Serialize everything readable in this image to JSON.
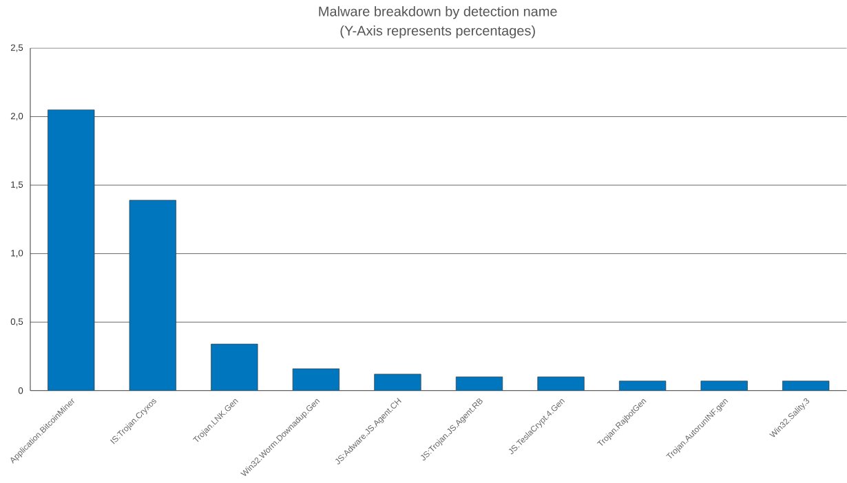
{
  "chart_data": {
    "type": "bar",
    "title": "Malware breakdown by detection name",
    "subtitle": "(Y-Axis represents percentages)",
    "categories": [
      "Application.BitcoinMiner",
      "IS:Trojan.Cryxos",
      "Trojan.LNK.Gen",
      "Win32.Worm.Downadup.Gen",
      "JS:Adware.JS.Agent.CH",
      "JS:Trojan.JS.Agent.RB",
      "JS.TeslaCrypt.4.Gen",
      "Trojan.RajbotGen",
      "Trojan.AutorunINF.gen",
      "Win32.Sality.3"
    ],
    "values": [
      2.05,
      1.39,
      0.34,
      0.16,
      0.12,
      0.1,
      0.1,
      0.07,
      0.07,
      0.07
    ],
    "color": "#0076be",
    "ylim": [
      0,
      2.5
    ],
    "yticks": [
      0,
      {
        "value": 0.5,
        "label": "0,5"
      },
      {
        "value": 1.0,
        "label": "1,0"
      },
      {
        "value": 1.5,
        "label": "1,5"
      },
      {
        "value": 2.0,
        "label": "2,0"
      },
      {
        "value": 2.5,
        "label": "2,5"
      }
    ],
    "grid": "y"
  }
}
